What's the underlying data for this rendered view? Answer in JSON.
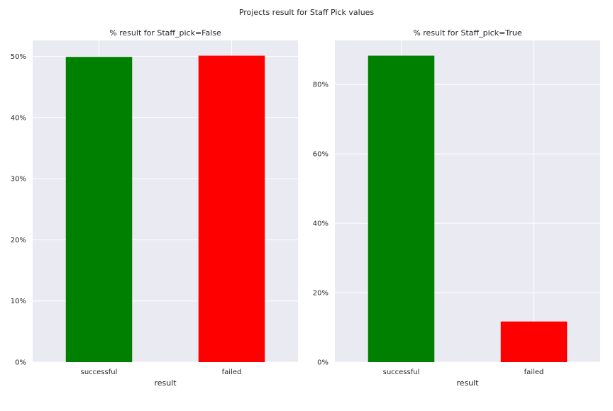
{
  "figure": {
    "suptitle": "Projects result for Staff Pick values"
  },
  "chart_data": [
    {
      "type": "bar",
      "title": "% result for Staff_pick=False",
      "xlabel": "result",
      "ylabel": "",
      "categories": [
        "successful",
        "failed"
      ],
      "values": [
        49.9,
        50.1
      ],
      "colors": [
        "#008000",
        "#ff0000"
      ],
      "ylim": [
        0,
        52.6
      ],
      "yticks": [
        0,
        10,
        20,
        30,
        40,
        50
      ],
      "ytick_labels": [
        "0%",
        "10%",
        "20%",
        "30%",
        "40%",
        "50%"
      ],
      "grid": true,
      "background": "#eaeaf2"
    },
    {
      "type": "bar",
      "title": "% result for Staff_pick=True",
      "xlabel": "result",
      "ylabel": "",
      "categories": [
        "successful",
        "failed"
      ],
      "values": [
        88.3,
        11.7
      ],
      "colors": [
        "#008000",
        "#ff0000"
      ],
      "ylim": [
        0,
        92.7
      ],
      "yticks": [
        0,
        20,
        40,
        60,
        80
      ],
      "ytick_labels": [
        "0%",
        "20%",
        "40%",
        "60%",
        "80%"
      ],
      "grid": true,
      "background": "#eaeaf2"
    }
  ]
}
